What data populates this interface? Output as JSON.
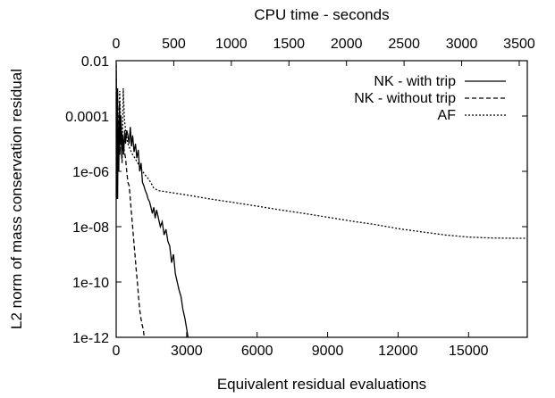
{
  "chart_data": {
    "type": "line",
    "x_axis_bottom": {
      "label": "Equivalent residual evaluations",
      "range": [
        0,
        17500
      ],
      "ticks": [
        0,
        3000,
        6000,
        9000,
        12000,
        15000
      ],
      "tick_labels": [
        "0",
        "3000",
        "6000",
        "9000",
        "12000",
        "15000"
      ]
    },
    "x_axis_top": {
      "label": "CPU time - seconds",
      "range": [
        0,
        3570
      ],
      "ticks": [
        0,
        500,
        1000,
        1500,
        2000,
        2500,
        3000,
        3500
      ],
      "tick_labels": [
        "0",
        "500",
        "1000",
        "1500",
        "2000",
        "2500",
        "3000",
        "3500"
      ]
    },
    "y_axis": {
      "label": "L2 norm of mass conservation residual",
      "scale": "log",
      "range": [
        1e-12,
        0.01
      ],
      "ticks": [
        0.01,
        0.0001,
        1e-06,
        1e-08,
        1e-10,
        1e-12
      ],
      "tick_labels": [
        "0.01",
        "0.0001",
        "1e-06",
        "1e-08",
        "1e-10",
        "1e-12"
      ]
    },
    "legend_position": "top-right",
    "grid": false,
    "series": [
      {
        "name": "NK - with trip",
        "style": "solid",
        "x": [
          0,
          20,
          40,
          60,
          80,
          110,
          140,
          170,
          200,
          240,
          280,
          320,
          360,
          400,
          450,
          500,
          550,
          600,
          650,
          700,
          760,
          820,
          880,
          940,
          1000,
          1060,
          1120,
          1180,
          1240,
          1300,
          1360,
          1420,
          1480,
          1540,
          1600,
          1660,
          1720,
          1800,
          1880,
          1960,
          2040,
          2120,
          2200,
          2280,
          2360,
          2440,
          2520,
          2600,
          2680,
          2760,
          2840,
          2920,
          3000,
          3060
        ],
        "y": [
          0.007,
          1e-06,
          0.001,
          1e-07,
          3e-05,
          1e-06,
          0.0003,
          1e-05,
          0.0001,
          3e-06,
          2e-05,
          4e-06,
          3e-05,
          1e-05,
          3e-05,
          2e-05,
          1e-05,
          4e-05,
          8e-06,
          2e-05,
          5e-06,
          1e-05,
          3e-06,
          6e-06,
          1e-06,
          2e-06,
          4e-07,
          3e-07,
          2e-07,
          1.5e-07,
          1e-07,
          8e-08,
          5e-08,
          3e-08,
          5e-08,
          2e-08,
          4e-08,
          2e-08,
          1e-08,
          1.5e-08,
          5e-09,
          8e-09,
          3e-09,
          2e-09,
          5e-10,
          1e-09,
          2e-10,
          1e-10,
          5e-11,
          3e-11,
          1e-11,
          5e-12,
          2e-12,
          1e-12
        ]
      },
      {
        "name": "NK - without trip",
        "style": "dashed",
        "x": [
          0,
          30,
          60,
          90,
          120,
          160,
          200,
          250,
          300,
          350,
          400,
          450,
          500,
          550,
          600,
          650,
          700,
          750,
          800,
          850,
          900,
          950,
          1000,
          1050,
          1100,
          1150,
          1200
        ],
        "y": [
          0.008,
          1e-07,
          0.001,
          3e-06,
          0.0001,
          4e-06,
          5e-05,
          2e-05,
          1e-05,
          5e-06,
          3e-06,
          1e-06,
          4e-07,
          3e-07,
          1e-07,
          3e-08,
          1e-08,
          3e-09,
          1e-09,
          3e-10,
          1e-10,
          3e-11,
          1e-11,
          5e-12,
          3e-12,
          2e-12,
          1e-12
        ]
      },
      {
        "name": "AF",
        "style": "dotted",
        "x": [
          0,
          50,
          100,
          150,
          200,
          250,
          300,
          350,
          400,
          500,
          600,
          700,
          800,
          1000,
          1200,
          1400,
          1600,
          1800,
          2000,
          3000,
          4000,
          5000,
          6000,
          7000,
          8000,
          9000,
          10000,
          11000,
          12000,
          13000,
          14000,
          15000,
          16000,
          17000,
          17500
        ],
        "y": [
          0.003,
          0.0001,
          2e-05,
          0.0008,
          3e-05,
          2e-06,
          0.001,
          8e-05,
          3e-05,
          1e-05,
          6e-06,
          4e-06,
          3e-06,
          1.5e-06,
          8e-07,
          5e-07,
          2.5e-07,
          2e-07,
          1.9e-07,
          1.4e-07,
          1e-07,
          7.5e-08,
          5.5e-08,
          4e-08,
          3e-08,
          2.2e-08,
          1.6e-08,
          1.2e-08,
          8.5e-09,
          6.5e-09,
          5e-09,
          4.2e-09,
          3.9e-09,
          3.8e-09,
          3.8e-09
        ]
      }
    ]
  }
}
